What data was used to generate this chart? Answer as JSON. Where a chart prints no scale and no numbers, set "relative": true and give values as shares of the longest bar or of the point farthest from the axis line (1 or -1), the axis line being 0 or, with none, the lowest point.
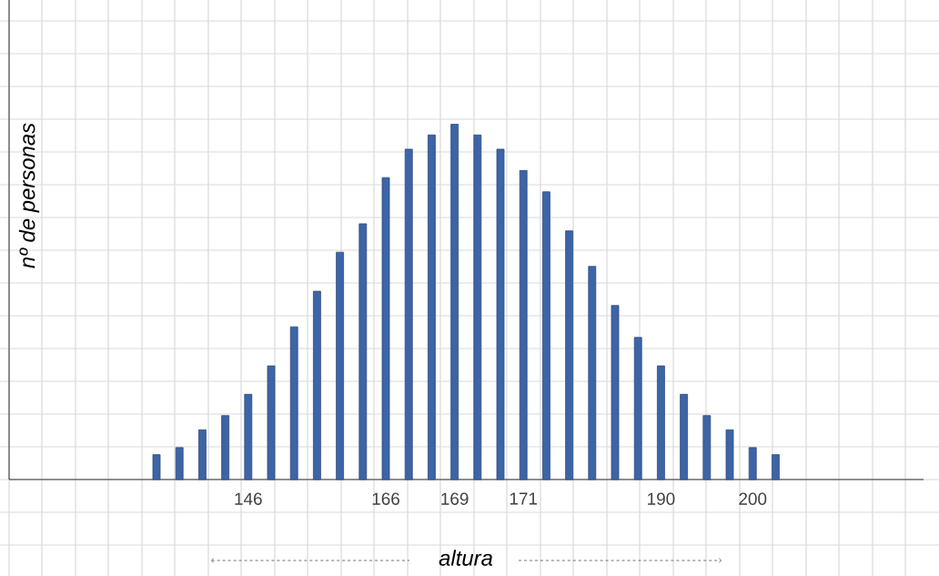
{
  "chart_data": {
    "type": "bar",
    "xlabel": "altura",
    "ylabel": "nº de personas",
    "categories": [
      null,
      null,
      null,
      null,
      "146",
      null,
      null,
      null,
      null,
      null,
      "166",
      null,
      null,
      "169",
      null,
      null,
      "171",
      null,
      null,
      null,
      null,
      null,
      "190",
      null,
      null,
      null,
      "200",
      null
    ],
    "values": [
      0.07,
      0.09,
      0.14,
      0.18,
      0.24,
      0.32,
      0.43,
      0.53,
      0.64,
      0.72,
      0.85,
      0.93,
      0.97,
      1,
      0.97,
      0.93,
      0.87,
      0.81,
      0.7,
      0.6,
      0.49,
      0.4,
      0.32,
      0.24,
      0.18,
      0.14,
      0.09,
      0.07
    ],
    "color": "#3d64a6",
    "relative": true,
    "grid": true
  }
}
